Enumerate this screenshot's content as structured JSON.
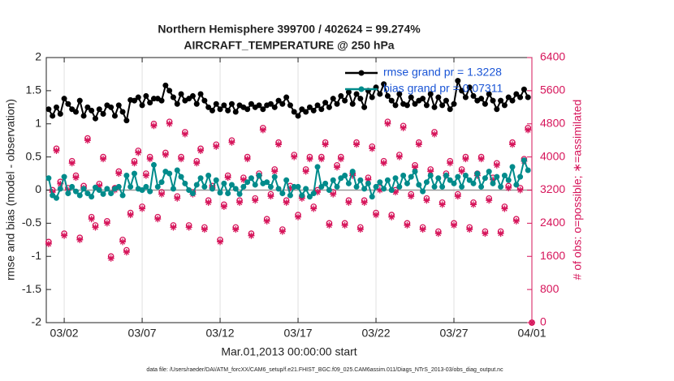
{
  "chart_data": {
    "type": "line",
    "title": "Northern Hemisphere 399700 / 402624 = 99.274%",
    "subtitle": "AIRCRAFT_TEMPERATURE @ 250 hPa",
    "xlabel": "Mar.01,2013 00:00:00 start",
    "ylabel": "rmse and bias (model - observation)",
    "y2label": "# of obs: o=possible; ∗=assimilated",
    "footnote": "data file: /Users/raeder/DAI/ATM_forcXX/CAM6_setup/f.e21.FHIST_BGC.f09_025.CAM6assim.011/Diags_NTrS_2013-03/obs_diag_output.nc",
    "xlim": [
      -0.15,
      31
    ],
    "xticks": [
      {
        "value": 1,
        "label": "03/02"
      },
      {
        "value": 6,
        "label": "03/07"
      },
      {
        "value": 11,
        "label": "03/12"
      },
      {
        "value": 16,
        "label": "03/17"
      },
      {
        "value": 21,
        "label": "03/22"
      },
      {
        "value": 26,
        "label": "03/27"
      },
      {
        "value": 31,
        "label": "04/01"
      }
    ],
    "ylim": [
      -2,
      2
    ],
    "yticks": [
      -2,
      -1.5,
      -1,
      -0.5,
      0,
      0.5,
      1,
      1.5,
      2
    ],
    "y2lim": [
      0,
      6400
    ],
    "y2ticks": [
      0,
      800,
      1600,
      2400,
      3200,
      4000,
      4800,
      5600,
      6400
    ],
    "y2color": "#d6145a",
    "grid": "x",
    "legend": "upper right",
    "x": [
      0,
      0.25,
      0.5,
      0.75,
      1,
      1.25,
      1.5,
      1.75,
      2,
      2.25,
      2.5,
      2.75,
      3,
      3.25,
      3.5,
      3.75,
      4,
      4.25,
      4.5,
      4.75,
      5,
      5.25,
      5.5,
      5.75,
      6,
      6.25,
      6.5,
      6.75,
      7,
      7.25,
      7.5,
      7.75,
      8,
      8.25,
      8.5,
      8.75,
      9,
      9.25,
      9.5,
      9.75,
      10,
      10.25,
      10.5,
      10.75,
      11,
      11.25,
      11.5,
      11.75,
      12,
      12.25,
      12.5,
      12.75,
      13,
      13.25,
      13.5,
      13.75,
      14,
      14.25,
      14.5,
      14.75,
      15,
      15.25,
      15.5,
      15.75,
      16,
      16.25,
      16.5,
      16.75,
      17,
      17.25,
      17.5,
      17.75,
      18,
      18.25,
      18.5,
      18.75,
      19,
      19.25,
      19.5,
      19.75,
      20,
      20.25,
      20.5,
      20.75,
      21,
      21.25,
      21.5,
      21.75,
      22,
      22.25,
      22.5,
      22.75,
      23,
      23.25,
      23.5,
      23.75,
      24,
      24.25,
      24.5,
      24.75,
      25,
      25.25,
      25.5,
      25.75,
      26,
      26.25,
      26.5,
      26.75,
      27,
      27.25,
      27.5,
      27.75,
      28,
      28.25,
      28.5,
      28.75,
      29,
      29.25,
      29.5,
      29.75,
      30,
      30.25,
      30.5,
      30.75,
      31
    ],
    "series": [
      {
        "name": "rmse grand pr = 1.3228",
        "color": "#000000",
        "marker": "filled-circle",
        "values": [
          1.22,
          1.12,
          1.25,
          1.15,
          1.38,
          1.3,
          1.22,
          1.18,
          1.35,
          1.12,
          1.25,
          1.2,
          1.08,
          1.22,
          1.15,
          1.28,
          1.25,
          1.12,
          1.28,
          1.18,
          1.05,
          1.36,
          1.35,
          1.4,
          1.28,
          1.42,
          1.32,
          1.38,
          1.38,
          1.35,
          1.58,
          1.5,
          1.4,
          1.3,
          1.45,
          1.35,
          1.38,
          1.42,
          1.3,
          1.45,
          1.35,
          1.25,
          1.2,
          1.3,
          1.22,
          1.28,
          1.2,
          1.3,
          1.18,
          1.28,
          1.25,
          1.22,
          1.3,
          1.25,
          1.28,
          1.22,
          1.28,
          1.3,
          1.25,
          1.35,
          1.3,
          1.4,
          1.28,
          1.18,
          1.12,
          1.22,
          1.18,
          1.25,
          1.2,
          1.28,
          1.22,
          1.32,
          1.25,
          1.38,
          1.3,
          1.42,
          1.35,
          1.48,
          1.3,
          1.45,
          1.38,
          1.25,
          1.5,
          1.4,
          1.55,
          1.45,
          1.6,
          1.42,
          1.35,
          1.28,
          1.45,
          1.3,
          1.28,
          1.4,
          1.3,
          1.35,
          1.38,
          1.28,
          1.45,
          1.25,
          1.4,
          1.28,
          1.35,
          1.22,
          1.3,
          1.65,
          1.5,
          1.4,
          1.55,
          1.42,
          1.35,
          1.38,
          1.3,
          1.45,
          1.35,
          1.22,
          1.35,
          1.28,
          1.4,
          1.35,
          1.45,
          1.4,
          1.52,
          1.4,
          null
        ]
      },
      {
        "name": "bias grand pr = 0.07311",
        "color": "#008b8b",
        "marker": "filled-circle",
        "values": [
          0.18,
          -0.08,
          -0.12,
          0.02,
          0.2,
          -0.05,
          0.05,
          -0.02,
          -0.08,
          0.02,
          -0.05,
          -0.1,
          0.04,
          0.0,
          -0.06,
          0.02,
          -0.05,
          0.02,
          0.05,
          -0.08,
          0.22,
          0.05,
          0.25,
          0.02,
          0.0,
          0.05,
          -0.02,
          0.38,
          0.05,
          0.12,
          0.28,
          0.25,
          0.02,
          0.3,
          0.2,
          0.1,
          0.0,
          -0.05,
          0.08,
          0.18,
          0.05,
          0.22,
          0.02,
          0.15,
          -0.04,
          0.1,
          -0.05,
          0.08,
          0.02,
          -0.06,
          0.05,
          0.12,
          0.18,
          0.08,
          0.22,
          0.1,
          0.12,
          0.05,
          0.2,
          0.02,
          -0.05,
          0.15,
          -0.08,
          0.05,
          0.05,
          -0.08,
          0.02,
          -0.1,
          -0.05,
          0.35,
          0.05,
          0.1,
          0.0,
          0.15,
          0.05,
          0.18,
          0.22,
          0.1,
          0.28,
          0.05,
          0.15,
          0.02,
          0.1,
          -0.1,
          0.05,
          0.12,
          0.02,
          0.15,
          0.0,
          0.18,
          0.05,
          0.22,
          0.1,
          0.2,
          0.28,
          0.08,
          -0.02,
          0.12,
          0.22,
          0.05,
          0.18,
          0.05,
          0.22,
          0.15,
          0.1,
          0.2,
          0.05,
          0.22,
          0.15,
          0.1,
          0.25,
          0.05,
          0.18,
          0.28,
          0.1,
          0.2,
          0.05,
          0.22,
          0.15,
          0.35,
          0.08,
          0.2,
          0.45,
          0.3,
          null
        ]
      },
      {
        "axis": "y2",
        "color": "#d6145a",
        "marker": "o",
        "values": [
          1950,
          3200,
          4200,
          3400,
          2150,
          3250,
          3900,
          3550,
          2050,
          3300,
          4450,
          2550,
          2350,
          3350,
          4000,
          2450,
          1600,
          3250,
          3650,
          2000,
          1750,
          2650,
          3900,
          4150,
          2800,
          3600,
          4000,
          4800,
          2550,
          3150,
          4100,
          4850,
          2350,
          3050,
          4000,
          4600,
          2350,
          3150,
          3900,
          4200,
          2300,
          2950,
          3300,
          4300,
          2000,
          2850,
          3550,
          4400,
          2300,
          2950,
          3500,
          4000,
          2150,
          3000,
          3600,
          4700,
          2500,
          3100,
          3700,
          4350,
          2250,
          2950,
          3300,
          4050,
          2600,
          3050,
          3700,
          4000,
          2800,
          3200,
          4000,
          4350,
          2400,
          3150,
          3800,
          4000,
          2400,
          2950,
          3600,
          4350,
          2300,
          2950,
          3500,
          4250,
          2650,
          3250,
          3900,
          4850,
          2600,
          3200,
          4050,
          4750,
          2400,
          3100,
          3800,
          4350,
          2300,
          3000,
          3700,
          4600,
          2200,
          2900,
          3600,
          3900,
          2400,
          3100,
          3700,
          4000,
          2300,
          2900,
          3600,
          4000,
          2200,
          3000,
          3500,
          3850,
          2200,
          2800,
          3300,
          4350,
          2500,
          3250,
          3950,
          4700,
          0
        ]
      },
      {
        "axis": "y2",
        "color": "#d6145a",
        "marker": "*",
        "values": [
          1900,
          3150,
          4150,
          3350,
          2100,
          3200,
          3850,
          3500,
          2000,
          3250,
          4400,
          2500,
          2300,
          3300,
          3950,
          2400,
          1550,
          3200,
          3600,
          1950,
          1700,
          2600,
          3850,
          4100,
          2750,
          3550,
          3950,
          4750,
          2500,
          3100,
          4050,
          4800,
          2300,
          3000,
          3950,
          4550,
          2300,
          3100,
          3850,
          4150,
          2250,
          2900,
          3250,
          4250,
          1950,
          2800,
          3500,
          4350,
          2250,
          2900,
          3450,
          3950,
          2100,
          2950,
          3550,
          4650,
          2450,
          3050,
          3650,
          4300,
          2200,
          2900,
          3250,
          4000,
          2550,
          3000,
          3650,
          3950,
          2750,
          3150,
          3950,
          4300,
          2350,
          3100,
          3750,
          3950,
          2350,
          2900,
          3550,
          4300,
          2250,
          2900,
          3450,
          4200,
          2600,
          3200,
          3850,
          4800,
          2550,
          3150,
          4000,
          4700,
          2350,
          3050,
          3750,
          4300,
          2250,
          2950,
          3650,
          4550,
          2150,
          2850,
          3550,
          3850,
          2350,
          3050,
          3650,
          3950,
          2250,
          2850,
          3550,
          3950,
          2150,
          2950,
          3450,
          3800,
          2150,
          2750,
          3250,
          4300,
          2450,
          3200,
          3900,
          4650,
          0
        ]
      }
    ]
  }
}
